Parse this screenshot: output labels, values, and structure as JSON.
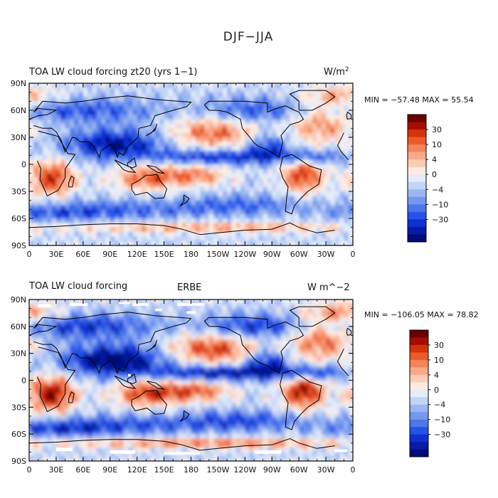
{
  "figure": {
    "title": "DJF−JJA"
  },
  "chart_data": [
    {
      "type": "heatmap",
      "title": "TOA LW cloud forcing zt20 (yrs 1−1)",
      "center_title": "",
      "units": "W/m",
      "units_sup": "2",
      "min_max": "MIN = −57.48 MAX =  55.54",
      "min": -57.48,
      "max": 55.54,
      "colorbar_labels": [
        "30",
        "10",
        "4",
        "0",
        "−4",
        "−10",
        "−30"
      ],
      "lon_ticks": [
        "0",
        "30E",
        "60E",
        "90E",
        "120E",
        "150E",
        "180",
        "150W",
        "120W",
        "90W",
        "60W",
        "30W",
        "0"
      ],
      "lat_ticks": [
        "90N",
        "60N",
        "30N",
        "0",
        "30S",
        "60S",
        "90S"
      ]
    },
    {
      "type": "heatmap",
      "title": "TOA LW cloud forcing",
      "center_title": "ERBE",
      "units": "W m^−2",
      "units_sup": "",
      "min_max": "MIN = −106.05 MAX =  78.82",
      "min": -106.05,
      "max": 78.82,
      "colorbar_labels": [
        "30",
        "10",
        "4",
        "0",
        "−4",
        "−10",
        "−30"
      ],
      "lon_ticks": [
        "0",
        "30E",
        "60E",
        "90E",
        "120E",
        "150E",
        "180",
        "150W",
        "120W",
        "90W",
        "60W",
        "30W",
        "0"
      ],
      "lat_ticks": [
        "90N",
        "60N",
        "30N",
        "0",
        "30S",
        "60S",
        "90S"
      ]
    }
  ],
  "colors": {
    "levels": [
      "#6a0000",
      "#a80c00",
      "#d4320a",
      "#ec5a2a",
      "#f4845a",
      "#f9a98a",
      "#fccbb4",
      "#fdebe0",
      "#e3ecfb",
      "#c2d4f7",
      "#9bb6f1",
      "#7598ee",
      "#4c77ea",
      "#2652e8",
      "#0f2fd2",
      "#061ca6",
      "#000a78"
    ]
  }
}
